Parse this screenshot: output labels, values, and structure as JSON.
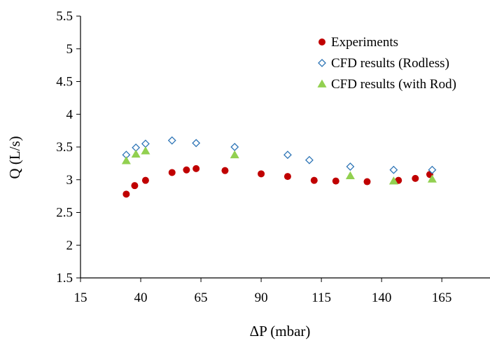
{
  "chart_data": {
    "type": "scatter",
    "title": "",
    "xlabel": "ΔP (mbar)",
    "ylabel": "Q (L/s)",
    "xlim": [
      15,
      185
    ],
    "ylim": [
      1.5,
      5.5
    ],
    "x_tick_labels": [
      "15",
      "40",
      "65",
      "90",
      "115",
      "140",
      "165"
    ],
    "y_tick_labels": [
      "1.5",
      "2",
      "2.5",
      "3",
      "3.5",
      "4",
      "4.5",
      "5",
      "5.5"
    ],
    "grid": false,
    "legend_position": "top-right",
    "series": [
      {
        "name": "Experiments",
        "marker": "circle",
        "color": "#C00000",
        "x": [
          34,
          37.5,
          42,
          53,
          59,
          63,
          75,
          90,
          101,
          112,
          121,
          134,
          147,
          154,
          160
        ],
        "y": [
          2.78,
          2.91,
          2.99,
          3.11,
          3.15,
          3.17,
          3.14,
          3.09,
          3.05,
          2.99,
          2.98,
          2.97,
          2.99,
          3.02,
          3.08
        ]
      },
      {
        "name": "CFD results (Rodless)",
        "marker": "diamond",
        "color": "#2E75B6",
        "x": [
          34,
          38,
          42,
          53,
          63,
          79,
          101,
          110,
          127,
          145,
          161
        ],
        "y": [
          3.38,
          3.49,
          3.55,
          3.6,
          3.56,
          3.5,
          3.38,
          3.3,
          3.2,
          3.15,
          3.15
        ]
      },
      {
        "name": "CFD results (with Rod)",
        "marker": "triangle",
        "color": "#92D050",
        "x": [
          34,
          38,
          42,
          79,
          127,
          145,
          161
        ],
        "y": [
          3.29,
          3.39,
          3.44,
          3.38,
          3.06,
          2.98,
          3.01
        ]
      }
    ]
  }
}
